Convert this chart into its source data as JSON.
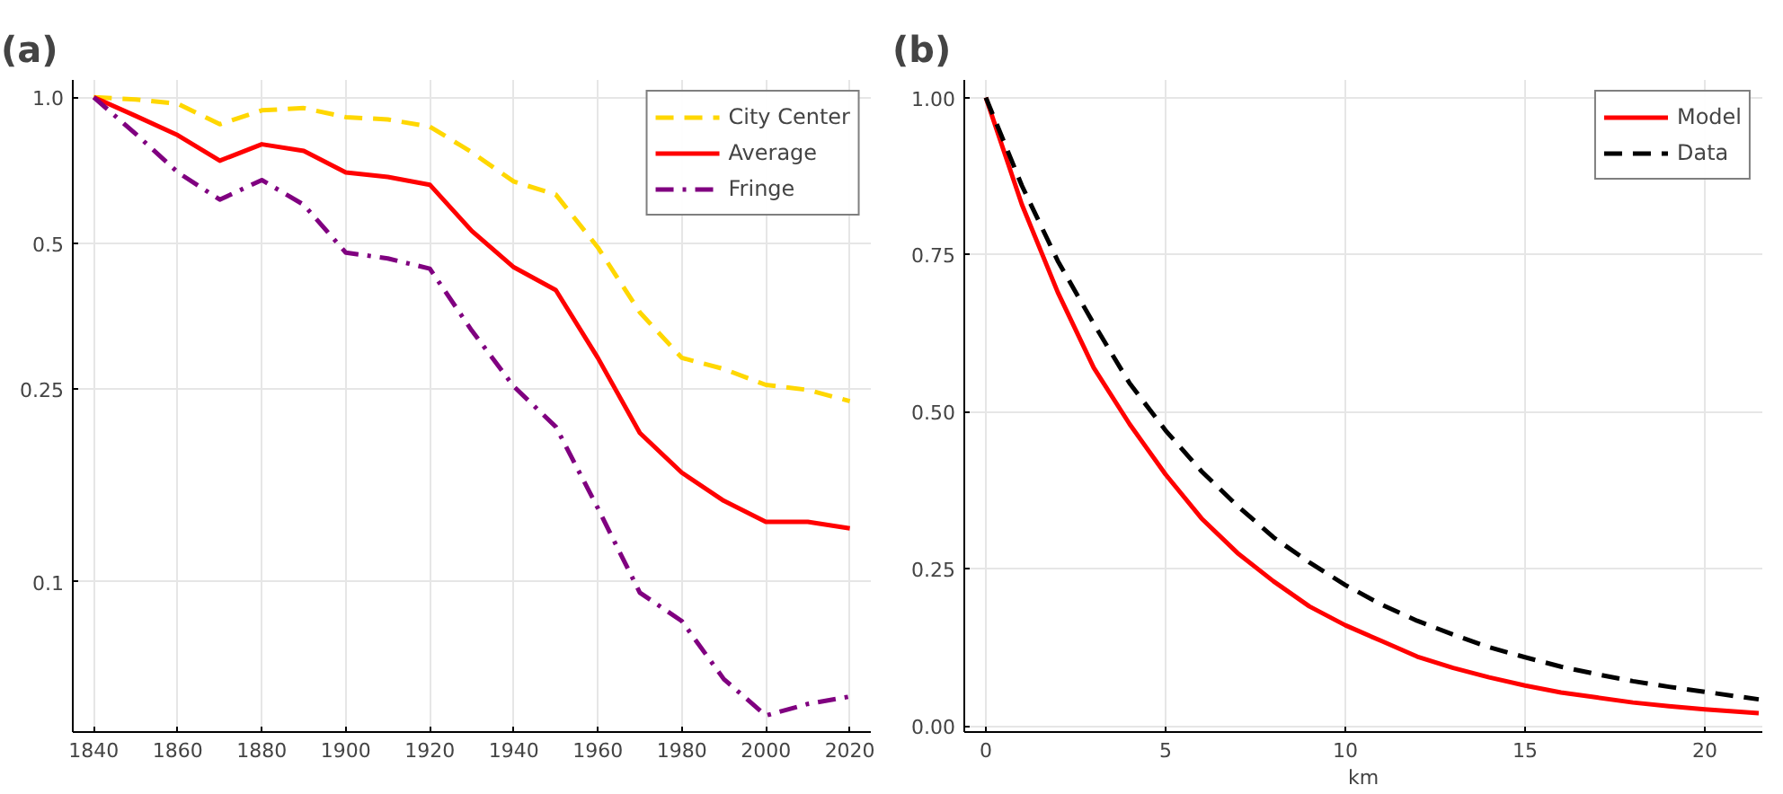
{
  "chart_data": [
    {
      "type": "line",
      "title": "(a)",
      "x": [
        1840,
        1850,
        1860,
        1870,
        1880,
        1890,
        1900,
        1910,
        1920,
        1930,
        1940,
        1950,
        1960,
        1970,
        1980,
        1990,
        2000,
        2010,
        2020
      ],
      "xlim": [
        1835,
        2025
      ],
      "xticks": [
        1840,
        1860,
        1880,
        1900,
        1920,
        1940,
        1960,
        1980,
        2000,
        2020
      ],
      "ylim": [
        0.049,
        1.086
      ],
      "yticks": [
        {
          "value": 0.1,
          "label": "0.1"
        },
        0.25,
        0.5,
        {
          "value": 1,
          "label": "1.0"
        }
      ],
      "log": "y",
      "grid": true,
      "legend": "top right",
      "series": [
        {
          "name": "City Center",
          "color": "#ffd700",
          "line_style": "dashed",
          "values": [
            1.0,
            0.99,
            0.97,
            0.88,
            0.94,
            0.95,
            0.91,
            0.9,
            0.87,
            0.77,
            0.67,
            0.63,
            0.49,
            0.36,
            0.29,
            0.275,
            0.255,
            0.249,
            0.236
          ]
        },
        {
          "name": "Average",
          "color": "#ff0000",
          "line_style": "solid",
          "values": [
            1.0,
            0.915,
            0.835,
            0.74,
            0.8,
            0.775,
            0.7,
            0.685,
            0.66,
            0.53,
            0.446,
            0.4,
            0.29,
            0.203,
            0.168,
            0.147,
            0.133,
            0.133,
            0.129
          ]
        },
        {
          "name": "Fringe",
          "color": "#800080",
          "line_style": "dashdot",
          "values": [
            1.0,
            0.84,
            0.7,
            0.615,
            0.675,
            0.6,
            0.478,
            0.465,
            0.443,
            0.33,
            0.253,
            0.209,
            0.142,
            0.095,
            0.083,
            0.063,
            0.053,
            0.056,
            0.058
          ]
        }
      ]
    },
    {
      "type": "line",
      "title": "(b)",
      "xlabel": "km",
      "x": [
        0,
        1,
        2,
        3,
        4,
        5,
        6,
        7,
        8,
        9,
        10,
        11,
        12,
        13,
        14,
        15,
        16,
        17,
        18,
        19,
        20,
        21.5
      ],
      "xlim": [
        -0.6,
        21.6
      ],
      "xticks": [
        0,
        5,
        10,
        15,
        20
      ],
      "ylim": [
        -0.01,
        1.028
      ],
      "yticks": [
        {
          "value": 0,
          "label": "0.00"
        },
        0.25,
        {
          "value": 0.5,
          "label": "0.50"
        },
        0.75,
        {
          "value": 1,
          "label": "1.00"
        }
      ],
      "grid": true,
      "legend": "top right",
      "series": [
        {
          "name": "Model",
          "color": "#ff0000",
          "line_style": "solid",
          "values": [
            1.0,
            0.83,
            0.69,
            0.57,
            0.48,
            0.4,
            0.33,
            0.275,
            0.23,
            0.19,
            0.16,
            0.135,
            0.11,
            0.092,
            0.077,
            0.064,
            0.053,
            0.045,
            0.037,
            0.031,
            0.026,
            0.02
          ]
        },
        {
          "name": "Data",
          "color": "#000000",
          "line_style": "dashed",
          "values": [
            1.0,
            0.86,
            0.74,
            0.64,
            0.545,
            0.47,
            0.405,
            0.35,
            0.3,
            0.26,
            0.224,
            0.193,
            0.167,
            0.145,
            0.125,
            0.109,
            0.094,
            0.082,
            0.071,
            0.062,
            0.054,
            0.042
          ]
        }
      ]
    }
  ]
}
